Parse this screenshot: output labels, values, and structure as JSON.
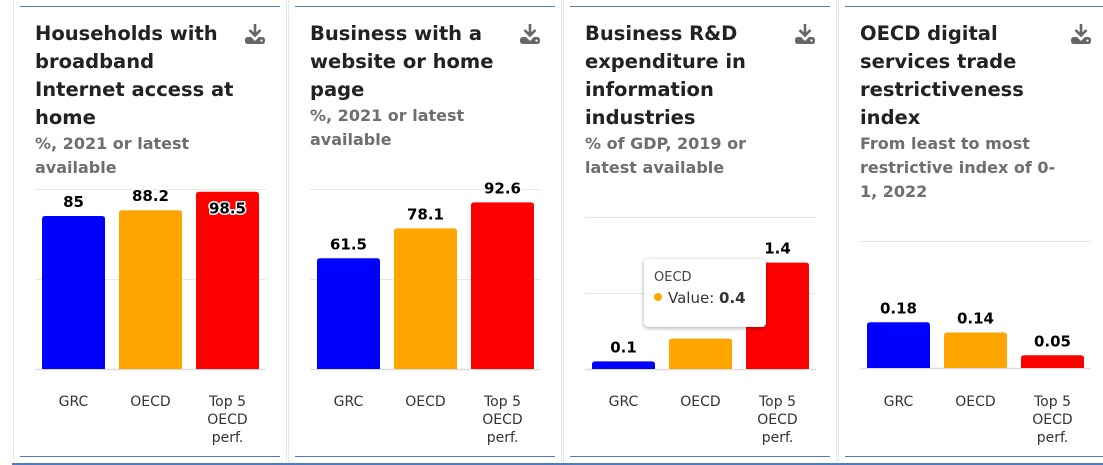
{
  "colors": {
    "GRC": "#0000ff",
    "OECD": "#ffa500",
    "Top 5 OECD perf.": "#ff0000",
    "rule": "#4f7cbf"
  },
  "icons": {
    "download": "download-icon"
  },
  "cards": [
    {
      "title": "Households with broadband Internet access at home",
      "subtitle": "%, 2021 or latest available"
    },
    {
      "title": "Business with a website or home page",
      "subtitle": "%, 2021 or latest available"
    },
    {
      "title": "Business R&D expenditure in information industries",
      "subtitle": "% of GDP, 2019 or latest available"
    },
    {
      "title": "OECD digital services trade restrictiveness index",
      "subtitle": "From least to most restrictive index of 0-1, 2022"
    }
  ],
  "tooltip": {
    "category": "OECD",
    "label": "Value:",
    "value": "0.4"
  },
  "chart_data": [
    {
      "type": "bar",
      "title": "Households with broadband Internet access at home",
      "subtitle": "%, 2021 or latest available",
      "categories": [
        "GRC",
        "OECD",
        "Top 5 OECD perf."
      ],
      "category_labels": [
        [
          "GRC"
        ],
        [
          "OECD"
        ],
        [
          "Top 5",
          "OECD",
          "perf."
        ]
      ],
      "values": [
        85,
        88.2,
        98.5
      ],
      "data_labels": [
        "85",
        "88.2",
        "98.5"
      ],
      "ylim": [
        0,
        100
      ],
      "gridlines": [
        0,
        50,
        100
      ],
      "grid": true,
      "xlabel": "",
      "ylabel": ""
    },
    {
      "type": "bar",
      "title": "Business with a website or home page",
      "subtitle": "%, 2021 or latest available",
      "categories": [
        "GRC",
        "OECD",
        "Top 5 OECD perf."
      ],
      "category_labels": [
        [
          "GRC"
        ],
        [
          "OECD"
        ],
        [
          "Top 5",
          "OECD",
          "perf."
        ]
      ],
      "values": [
        61.5,
        78.1,
        92.6
      ],
      "data_labels": [
        "61.5",
        "78.1",
        "92.6"
      ],
      "ylim": [
        0,
        100
      ],
      "gridlines": [
        0,
        50,
        100
      ],
      "grid": true,
      "xlabel": "",
      "ylabel": ""
    },
    {
      "type": "bar",
      "title": "Business R&D expenditure in information industries",
      "subtitle": "% of GDP, 2019 or latest available",
      "categories": [
        "GRC",
        "OECD",
        "Top 5 OECD perf."
      ],
      "category_labels": [
        [
          "GRC"
        ],
        [
          "OECD"
        ],
        [
          "Top 5",
          "OECD",
          "perf."
        ]
      ],
      "values": [
        0.1,
        0.4,
        1.4
      ],
      "data_labels": [
        "0.1",
        "",
        "1.4"
      ],
      "ylim": [
        0,
        2
      ],
      "gridlines": [
        0,
        1,
        2
      ],
      "grid": true,
      "xlabel": "",
      "ylabel": ""
    },
    {
      "type": "bar",
      "title": "OECD digital services trade restrictiveness index",
      "subtitle": "From least to most restrictive index of 0-1, 2022",
      "categories": [
        "GRC",
        "OECD",
        "Top 5 OECD perf."
      ],
      "category_labels": [
        [
          "GRC"
        ],
        [
          "OECD"
        ],
        [
          "Top 5",
          "OECD",
          "perf."
        ]
      ],
      "values": [
        0.18,
        0.14,
        0.05
      ],
      "data_labels": [
        "0.18",
        "0.14",
        "0.05"
      ],
      "ylim": [
        0,
        0.5
      ],
      "gridlines": [
        0,
        0.5
      ],
      "grid": true,
      "xlabel": "",
      "ylabel": ""
    }
  ]
}
